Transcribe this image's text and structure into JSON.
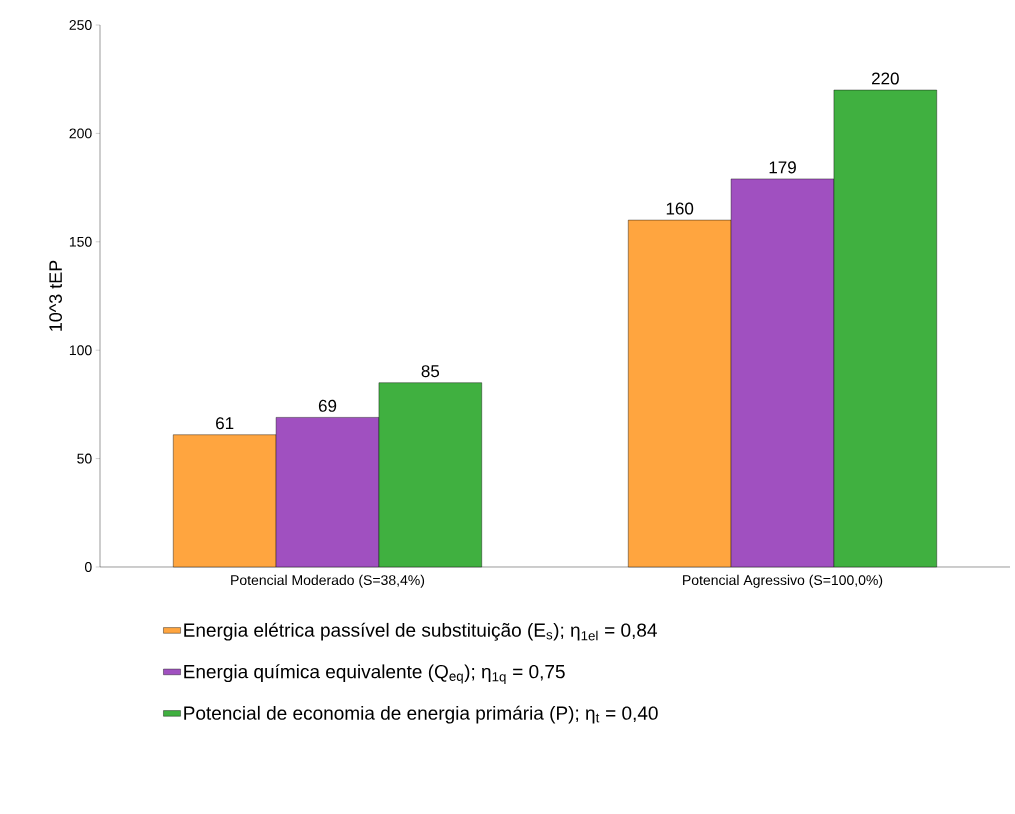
{
  "chart_data": {
    "type": "bar",
    "ylabel": "10^3  tEP",
    "categories": [
      "Potencial Moderado (S=38,4%)",
      "Potencial Agressivo (S=100,0%)"
    ],
    "series": [
      {
        "name": "Energia elétrica passível de substituição (E$_{s}$); η$_{1el}$ = 0,84",
        "color": "#ffa53f",
        "values": [
          61,
          160
        ]
      },
      {
        "name": "Energia química equivalente (Q$_{eq}$); η$_{1q}$ = 0,75",
        "color": "#a050c0",
        "values": [
          69,
          179
        ]
      },
      {
        "name": "Potencial de economia de energia primária (P); η$_{t}$ = 0,40",
        "color": "#40b040",
        "values": [
          85,
          220
        ]
      }
    ],
    "ylim": [
      0,
      250
    ],
    "yticks": [
      0,
      50,
      100,
      150,
      200,
      250
    ],
    "data_labels": true,
    "legend": "bottom",
    "grid": false
  }
}
